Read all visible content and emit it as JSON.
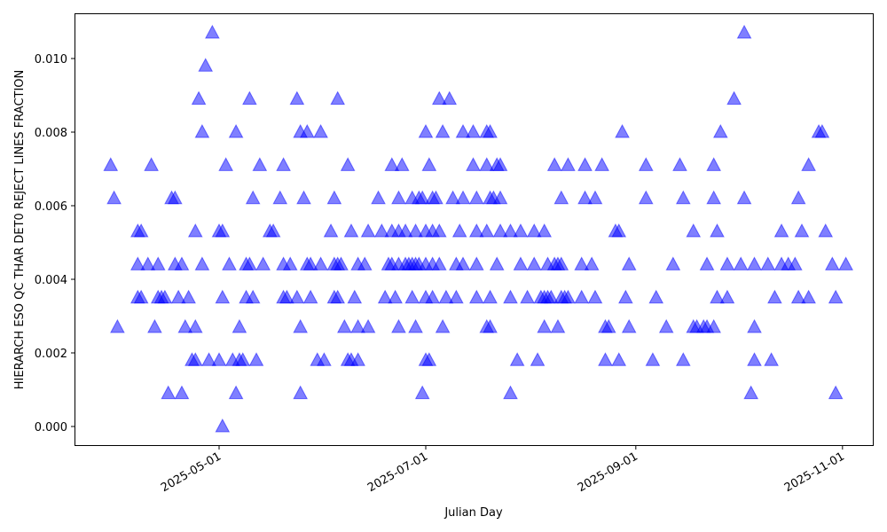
{
  "chart_data": {
    "type": "scatter",
    "title": "",
    "xlabel": "Julian Day",
    "ylabel": "HIERARCH ESO QC THAR DET0 REJECT LINES FRACTION",
    "x_ticks": [
      "2025-05-01",
      "2025-07-01",
      "2025-09-01",
      "2025-11-01"
    ],
    "y_ticks": [
      "0.000",
      "0.002",
      "0.004",
      "0.006",
      "0.008",
      "0.010"
    ],
    "ylim": [
      -0.0005,
      0.0112
    ],
    "xlim_days_from_2025-05-01": [
      -42,
      193
    ],
    "grid": false,
    "legend": null,
    "marker": "triangle-up",
    "marker_color": "#0000ff",
    "marker_alpha": 0.5,
    "x_unit": "days since 2025-05-01",
    "levels": [
      {
        "y": 0.0107,
        "days": [
          -2,
          155
        ]
      },
      {
        "y": 0.0098,
        "days": [
          -4
        ]
      },
      {
        "y": 0.0089,
        "days": [
          -6,
          9,
          23,
          35,
          65,
          68,
          152
        ]
      },
      {
        "y": 0.008,
        "days": [
          -5,
          5,
          24,
          26,
          30,
          61,
          66,
          72,
          75,
          79,
          80,
          119,
          148,
          177,
          178
        ]
      },
      {
        "y": 0.0071,
        "days": [
          -32,
          -20,
          2,
          12,
          19,
          38,
          51,
          54,
          62,
          75,
          79,
          82,
          83,
          99,
          103,
          108,
          113,
          126,
          136,
          146,
          174
        ]
      },
      {
        "y": 0.0062,
        "days": [
          -31,
          -14,
          -13,
          10,
          18,
          25,
          34,
          47,
          53,
          57,
          59,
          60,
          63,
          64,
          69,
          72,
          76,
          80,
          81,
          83,
          101,
          108,
          111,
          126,
          137,
          146,
          155,
          171
        ]
      },
      {
        "y": 0.0053,
        "days": [
          -24,
          -23,
          -7,
          0,
          1,
          15,
          16,
          33,
          39,
          44,
          48,
          51,
          53,
          55,
          58,
          61,
          63,
          65,
          71,
          76,
          79,
          83,
          86,
          89,
          93,
          96,
          117,
          118,
          140,
          147,
          166,
          172,
          179
        ]
      },
      {
        "y": 0.0044,
        "days": [
          -24,
          -21,
          -18,
          -13,
          -11,
          -5,
          3,
          8,
          9,
          13,
          19,
          21,
          26,
          27,
          30,
          34,
          35,
          36,
          41,
          43,
          50,
          51,
          53,
          55,
          56,
          57,
          58,
          59,
          61,
          63,
          65,
          70,
          72,
          76,
          82,
          89,
          93,
          97,
          99,
          100,
          101,
          107,
          110,
          121,
          134,
          144,
          150,
          154,
          158,
          162,
          166,
          168,
          170,
          181,
          185
        ]
      },
      {
        "y": 0.0035,
        "days": [
          -24,
          -23,
          -18,
          -17,
          -16,
          -12,
          -9,
          1,
          8,
          10,
          19,
          20,
          23,
          27,
          34,
          35,
          40,
          49,
          52,
          57,
          61,
          63,
          67,
          70,
          76,
          80,
          86,
          91,
          95,
          96,
          97,
          98,
          101,
          102,
          103,
          107,
          111,
          120,
          129,
          147,
          150,
          164,
          171,
          174,
          182
        ]
      },
      {
        "y": 0.0027,
        "days": [
          -30,
          -19,
          -10,
          -7,
          6,
          24,
          37,
          41,
          44,
          53,
          58,
          66,
          79,
          80,
          96,
          100,
          114,
          115,
          121,
          132,
          140,
          141,
          143,
          144,
          146,
          158
        ]
      },
      {
        "y": 0.0018,
        "days": [
          -8,
          -7,
          -3,
          0,
          4,
          6,
          7,
          11,
          29,
          31,
          38,
          39,
          41,
          61,
          62,
          88,
          94,
          114,
          118,
          128,
          137,
          158,
          163
        ]
      },
      {
        "y": 0.0009,
        "days": [
          -15,
          -11,
          5,
          24,
          60,
          86,
          157,
          182
        ]
      },
      {
        "y": 0.0,
        "days": [
          1
        ]
      }
    ]
  }
}
